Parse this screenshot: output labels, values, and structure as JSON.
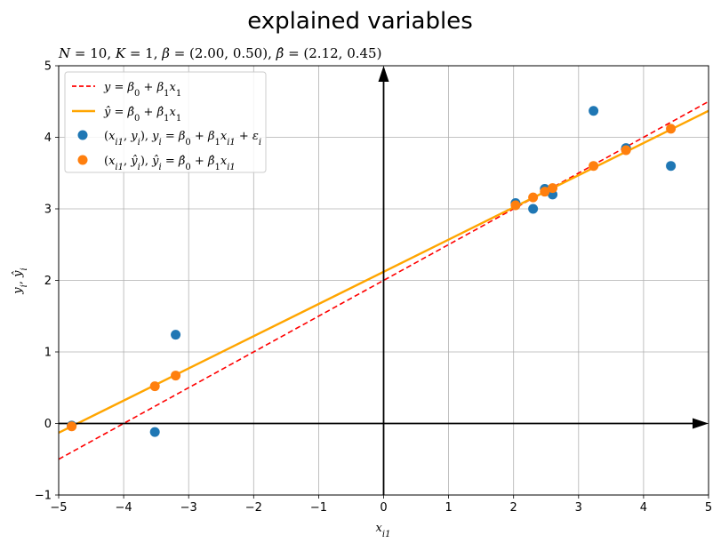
{
  "figure": {
    "suptitle": "explained variables"
  },
  "chart_data": {
    "type": "scatter",
    "title": "N = 10, K = 1, β = (2.00, 0.50), β̂ = (2.12, 0.45)",
    "xlabel": "x_i1",
    "ylabel": "y_i, ŷ_i",
    "xlim": [
      -5,
      5
    ],
    "ylim": [
      -1,
      5
    ],
    "xticks": [
      -5,
      -4,
      -3,
      -2,
      -1,
      0,
      1,
      2,
      3,
      4,
      5
    ],
    "yticks": [
      -1,
      0,
      1,
      2,
      3,
      4,
      5
    ],
    "grid": true,
    "legend_position": "top-left",
    "colors": {
      "true_line": "#ff0000",
      "fitted_line": "#ffa500",
      "observed": "#1f77b4",
      "fitted_points": "#ff7f0e",
      "grid": "#b0b0b0",
      "axes_arrows": "#000000"
    },
    "lines": [
      {
        "name": "y = β0 + β1x1",
        "style": "dashed",
        "intercept": 2.0,
        "slope": 0.5
      },
      {
        "name": "ŷ = β̂0 + β̂1x1",
        "style": "solid",
        "intercept": 2.12,
        "slope": 0.45
      }
    ],
    "series": [
      {
        "name": "(xi1, yi), yi = β0 + β1xi1 + εi",
        "points": [
          [
            -4.8,
            -0.03
          ],
          [
            -3.52,
            -0.12
          ],
          [
            -3.2,
            1.24
          ],
          [
            2.03,
            3.08
          ],
          [
            2.3,
            3.0
          ],
          [
            2.48,
            3.28
          ],
          [
            2.6,
            3.2
          ],
          [
            3.23,
            4.37
          ],
          [
            3.73,
            3.85
          ],
          [
            4.42,
            3.6
          ]
        ]
      },
      {
        "name": "(xi1, ŷi), ŷi = β̂0 + β̂1xi1",
        "points": [
          [
            -4.8,
            -0.04
          ],
          [
            -3.52,
            0.52
          ],
          [
            -3.2,
            0.67
          ],
          [
            2.03,
            3.05
          ],
          [
            2.3,
            3.16
          ],
          [
            2.48,
            3.24
          ],
          [
            2.6,
            3.29
          ],
          [
            3.23,
            3.6
          ],
          [
            3.73,
            3.82
          ],
          [
            4.42,
            4.12
          ]
        ]
      }
    ]
  }
}
